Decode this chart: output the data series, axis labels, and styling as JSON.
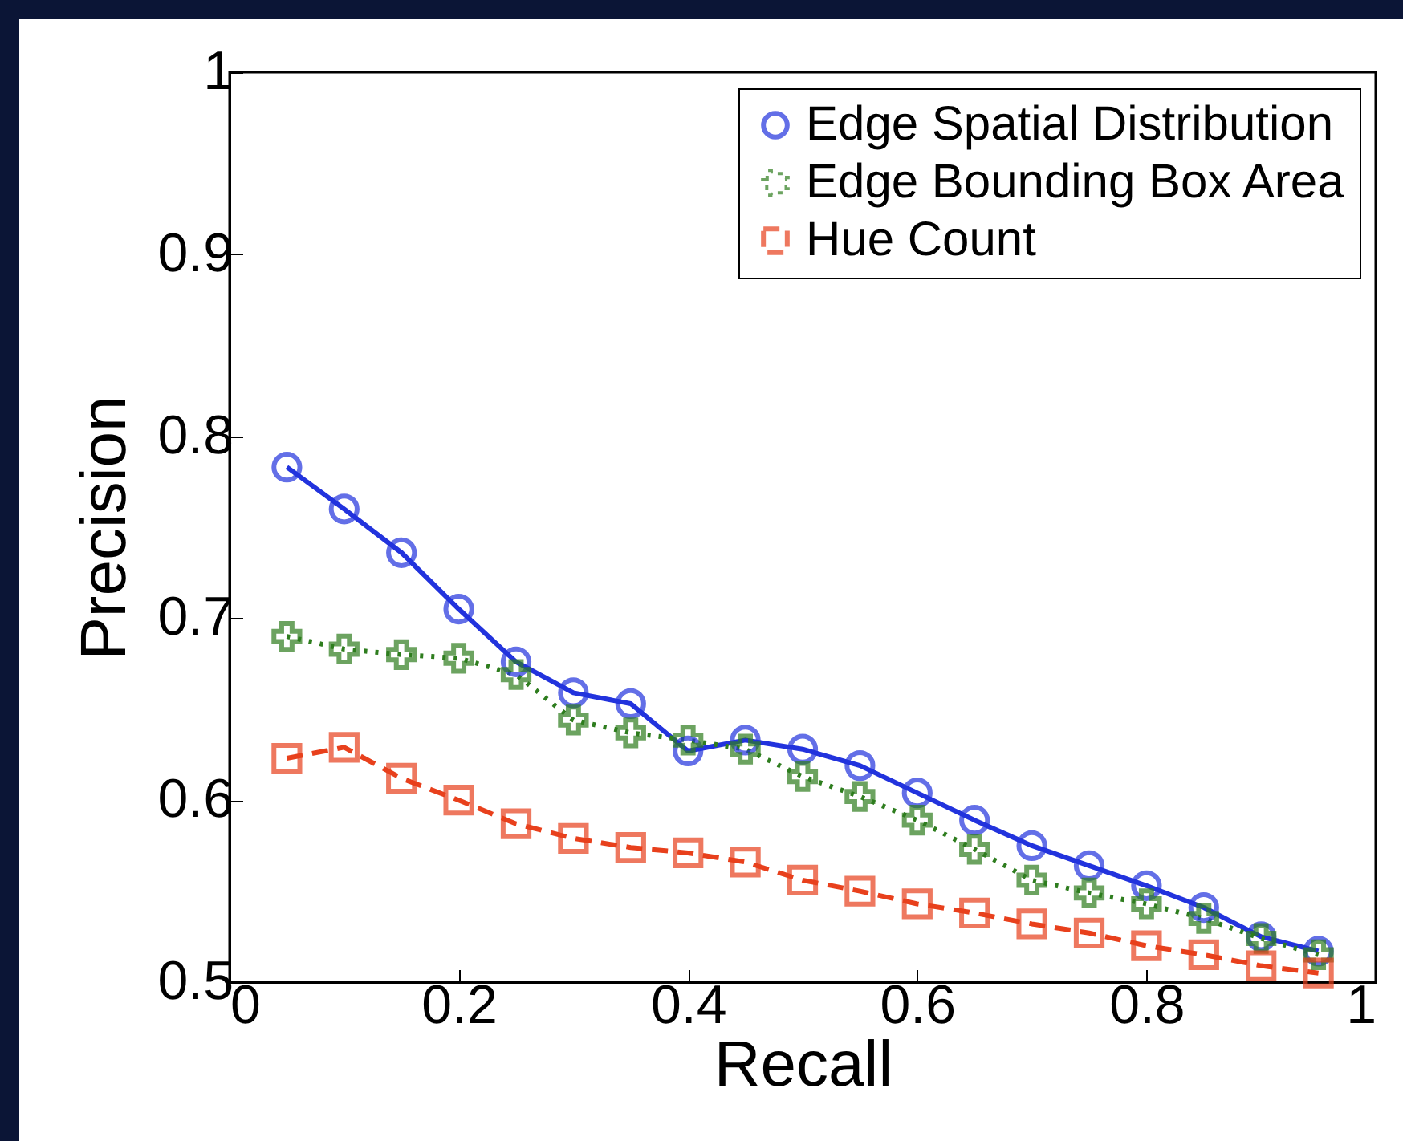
{
  "chart_data": {
    "type": "line",
    "xlabel": "Recall",
    "ylabel": "Precision",
    "x": [
      0.05,
      0.1,
      0.15,
      0.2,
      0.25,
      0.3,
      0.35,
      0.4,
      0.45,
      0.5,
      0.55,
      0.6,
      0.65,
      0.7,
      0.75,
      0.8,
      0.85,
      0.9,
      0.95
    ],
    "series": [
      {
        "name": "Edge Spatial Distribution",
        "color": "#2233dd",
        "marker": "circle",
        "line_style": "solid",
        "values": [
          0.783,
          0.76,
          0.736,
          0.705,
          0.676,
          0.659,
          0.653,
          0.627,
          0.633,
          0.628,
          0.619,
          0.604,
          0.589,
          0.575,
          0.564,
          0.553,
          0.541,
          0.525,
          0.517
        ]
      },
      {
        "name": "Edge Bounding Box Area",
        "color": "#2e7d1e",
        "marker": "cross",
        "line_style": "dotted",
        "values": [
          0.69,
          0.683,
          0.68,
          0.678,
          0.669,
          0.644,
          0.637,
          0.633,
          0.628,
          0.613,
          0.602,
          0.589,
          0.573,
          0.556,
          0.549,
          0.543,
          0.535,
          0.524,
          0.515
        ]
      },
      {
        "name": "Hue Count",
        "color": "#e8401c",
        "marker": "square",
        "line_style": "dashed",
        "values": [
          0.623,
          0.629,
          0.612,
          0.6,
          0.587,
          0.579,
          0.574,
          0.571,
          0.566,
          0.556,
          0.55,
          0.543,
          0.538,
          0.532,
          0.527,
          0.52,
          0.515,
          0.509,
          0.505
        ]
      }
    ],
    "xlim": [
      0,
      1
    ],
    "xticks": [
      0,
      0.2,
      0.4,
      0.6,
      0.8,
      1
    ],
    "ylim": [
      0.5,
      1
    ],
    "yticks": [
      0.5,
      0.6,
      0.7,
      0.8,
      0.9,
      1
    ],
    "grid": false,
    "legend": "top right"
  }
}
